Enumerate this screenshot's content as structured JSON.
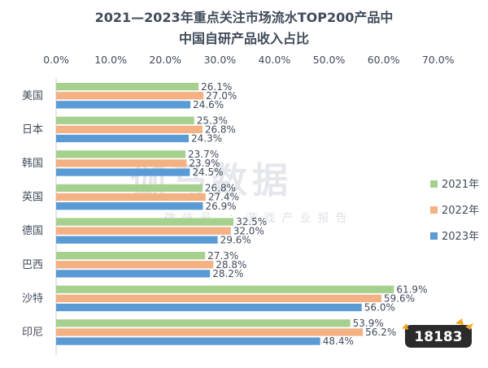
{
  "watermark": {
    "main": "伽马数据",
    "sub": "微信号 ：游戏产业报告"
  },
  "logo": {
    "text": "18183"
  },
  "chart_data": {
    "type": "bar",
    "orientation": "horizontal",
    "title": [
      "2021—2023年重点关注市场流水TOP200产品中",
      "中国自研产品收入占比"
    ],
    "categories": [
      "美国",
      "日本",
      "韩国",
      "英国",
      "德国",
      "巴西",
      "沙特",
      "印尼"
    ],
    "series": [
      {
        "name": "2021年",
        "color": "#a6d08e",
        "values": [
          26.1,
          25.3,
          23.7,
          26.8,
          32.5,
          27.3,
          61.9,
          53.9
        ]
      },
      {
        "name": "2022年",
        "color": "#f4b183",
        "values": [
          27.0,
          26.8,
          23.9,
          27.4,
          32.0,
          28.8,
          59.6,
          56.2
        ]
      },
      {
        "name": "2023年",
        "color": "#5b9bd5",
        "values": [
          24.6,
          24.3,
          24.5,
          26.9,
          29.6,
          28.2,
          56.0,
          48.4
        ]
      }
    ],
    "xaxis": {
      "position": "top",
      "min": 0,
      "max": 70,
      "step": 10,
      "tick_labels": [
        "0.0%",
        "10.0%",
        "20.0%",
        "30.0%",
        "40.0%",
        "50.0%",
        "60.0%",
        "70.0%"
      ]
    },
    "value_suffix": "%",
    "legend_position": "right",
    "grid": false
  }
}
